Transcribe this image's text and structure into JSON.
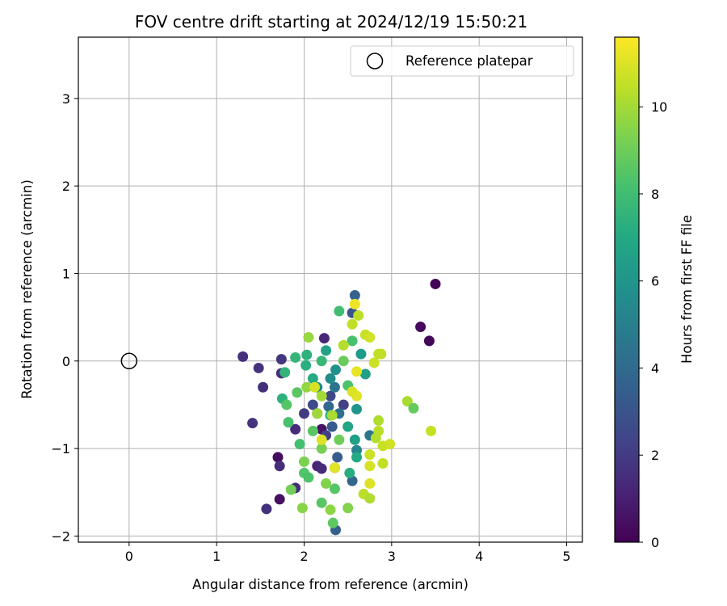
{
  "chart_data": {
    "type": "scatter",
    "title": "FOV centre drift starting at 2024/12/19 15:50:21",
    "xlabel": "Angular distance from reference (arcmin)",
    "ylabel": "Rotation from reference (arcmin)",
    "xlim": [
      -0.58,
      5.18
    ],
    "ylim": [
      -2.07,
      3.7
    ],
    "xticks": [
      0,
      1,
      2,
      3,
      4,
      5
    ],
    "yticks": [
      -2,
      -1,
      0,
      1,
      2,
      3
    ],
    "grid": true,
    "legend": {
      "placement": "top-right",
      "entries": [
        "Reference platepar"
      ]
    },
    "reference_point": {
      "x": 0,
      "y": 0,
      "marker": "open-circle"
    },
    "colorbar": {
      "label": "Hours from first FF file",
      "range": [
        0,
        11.6
      ],
      "ticks": [
        0,
        2,
        4,
        6,
        8,
        10
      ],
      "colormap": "viridis"
    },
    "series": [
      {
        "marker": "filled-circle",
        "points": [
          {
            "x": 3.5,
            "y": 0.88,
            "c": 0.1
          },
          {
            "x": 3.33,
            "y": 0.39,
            "c": 0.3
          },
          {
            "x": 3.43,
            "y": 0.23,
            "c": 0.2
          },
          {
            "x": 1.7,
            "y": -1.1,
            "c": 0.4
          },
          {
            "x": 1.72,
            "y": -1.58,
            "c": 0.5
          },
          {
            "x": 2.2,
            "y": -0.78,
            "c": 0.6
          },
          {
            "x": 1.3,
            "y": 0.05,
            "c": 1.6
          },
          {
            "x": 1.48,
            "y": -0.08,
            "c": 1.7
          },
          {
            "x": 1.53,
            "y": -0.3,
            "c": 1.6
          },
          {
            "x": 1.41,
            "y": -0.71,
            "c": 1.7
          },
          {
            "x": 1.57,
            "y": -1.69,
            "c": 1.6
          },
          {
            "x": 1.74,
            "y": -0.14,
            "c": 1.5
          },
          {
            "x": 1.72,
            "y": -1.2,
            "c": 1.5
          },
          {
            "x": 1.74,
            "y": 0.02,
            "c": 1.8
          },
          {
            "x": 1.9,
            "y": -0.78,
            "c": 1.5
          },
          {
            "x": 2.23,
            "y": 0.26,
            "c": 1.3
          },
          {
            "x": 2.15,
            "y": -1.2,
            "c": 1.2
          },
          {
            "x": 2.2,
            "y": -1.23,
            "c": 1.4
          },
          {
            "x": 1.9,
            "y": -1.45,
            "c": 1.5
          },
          {
            "x": 2.0,
            "y": -0.6,
            "c": 2.0
          },
          {
            "x": 2.15,
            "y": -0.6,
            "c": 2.5
          },
          {
            "x": 2.3,
            "y": -0.4,
            "c": 2.4
          },
          {
            "x": 2.45,
            "y": -0.5,
            "c": 2.2
          },
          {
            "x": 2.25,
            "y": -0.85,
            "c": 2.3
          },
          {
            "x": 2.1,
            "y": -0.5,
            "c": 2.6
          },
          {
            "x": 2.55,
            "y": 0.55,
            "c": 3.0
          },
          {
            "x": 2.58,
            "y": 0.75,
            "c": 3.6
          },
          {
            "x": 2.36,
            "y": -1.93,
            "c": 3.5
          },
          {
            "x": 2.35,
            "y": -1.22,
            "c": 3.2
          },
          {
            "x": 2.55,
            "y": -1.37,
            "c": 3.8
          },
          {
            "x": 2.38,
            "y": -1.1,
            "c": 3.4
          },
          {
            "x": 2.32,
            "y": -0.75,
            "c": 3.3
          },
          {
            "x": 2.28,
            "y": -0.52,
            "c": 3.9
          },
          {
            "x": 2.4,
            "y": -0.6,
            "c": 4.2
          },
          {
            "x": 2.35,
            "y": -0.3,
            "c": 4.4
          },
          {
            "x": 2.75,
            "y": -0.85,
            "c": 4.5
          },
          {
            "x": 2.6,
            "y": -1.02,
            "c": 5.2
          },
          {
            "x": 2.15,
            "y": -0.3,
            "c": 5.4
          },
          {
            "x": 2.3,
            "y": -0.2,
            "c": 5.6
          },
          {
            "x": 2.36,
            "y": -0.1,
            "c": 5.8
          },
          {
            "x": 2.6,
            "y": -0.55,
            "c": 6.0
          },
          {
            "x": 2.65,
            "y": 0.08,
            "c": 6.3
          },
          {
            "x": 2.7,
            "y": -0.15,
            "c": 6.5
          },
          {
            "x": 2.25,
            "y": 0.12,
            "c": 6.6
          },
          {
            "x": 2.5,
            "y": -0.75,
            "c": 6.8
          },
          {
            "x": 2.58,
            "y": -0.9,
            "c": 6.5
          },
          {
            "x": 2.6,
            "y": -1.1,
            "c": 7.0
          },
          {
            "x": 2.52,
            "y": -1.28,
            "c": 7.2
          },
          {
            "x": 2.3,
            "y": -0.62,
            "c": 7.0
          },
          {
            "x": 2.1,
            "y": -0.2,
            "c": 7.1
          },
          {
            "x": 2.02,
            "y": -0.05,
            "c": 7.3
          },
          {
            "x": 2.03,
            "y": 0.07,
            "c": 7.4
          },
          {
            "x": 1.9,
            "y": 0.04,
            "c": 7.6
          },
          {
            "x": 1.78,
            "y": -0.13,
            "c": 7.5
          },
          {
            "x": 1.75,
            "y": -0.43,
            "c": 7.4
          },
          {
            "x": 2.2,
            "y": 0.0,
            "c": 7.7
          },
          {
            "x": 2.4,
            "y": 0.57,
            "c": 8.0
          },
          {
            "x": 2.55,
            "y": 0.23,
            "c": 8.2
          },
          {
            "x": 2.5,
            "y": -0.28,
            "c": 8.3
          },
          {
            "x": 1.82,
            "y": -0.7,
            "c": 8.2
          },
          {
            "x": 1.95,
            "y": -0.95,
            "c": 8.1
          },
          {
            "x": 2.0,
            "y": -1.28,
            "c": 8.4
          },
          {
            "x": 2.05,
            "y": -1.33,
            "c": 8.3
          },
          {
            "x": 2.2,
            "y": -1.62,
            "c": 8.6
          },
          {
            "x": 2.33,
            "y": -1.85,
            "c": 8.7
          },
          {
            "x": 2.35,
            "y": -1.46,
            "c": 8.5
          },
          {
            "x": 1.92,
            "y": -0.36,
            "c": 8.6
          },
          {
            "x": 1.8,
            "y": -0.5,
            "c": 8.5
          },
          {
            "x": 2.1,
            "y": -0.8,
            "c": 8.6
          },
          {
            "x": 2.45,
            "y": 0.0,
            "c": 8.9
          },
          {
            "x": 2.4,
            "y": -0.9,
            "c": 9.0
          },
          {
            "x": 2.2,
            "y": -1.0,
            "c": 9.2
          },
          {
            "x": 1.85,
            "y": -1.47,
            "c": 9.1
          },
          {
            "x": 2.0,
            "y": -1.15,
            "c": 9.3
          },
          {
            "x": 2.25,
            "y": -1.4,
            "c": 9.4
          },
          {
            "x": 1.98,
            "y": -1.68,
            "c": 9.5
          },
          {
            "x": 2.3,
            "y": -1.7,
            "c": 9.6
          },
          {
            "x": 2.5,
            "y": -1.68,
            "c": 9.4
          },
          {
            "x": 2.03,
            "y": -0.3,
            "c": 9.7
          },
          {
            "x": 2.05,
            "y": 0.27,
            "c": 9.8
          },
          {
            "x": 2.15,
            "y": -0.6,
            "c": 9.9
          },
          {
            "x": 2.2,
            "y": -0.4,
            "c": 10.0
          },
          {
            "x": 2.32,
            "y": -0.62,
            "c": 10.1
          },
          {
            "x": 2.45,
            "y": 0.18,
            "c": 10.3
          },
          {
            "x": 2.55,
            "y": 0.42,
            "c": 10.5
          },
          {
            "x": 2.62,
            "y": 0.52,
            "c": 10.4
          },
          {
            "x": 2.7,
            "y": 0.3,
            "c": 10.6
          },
          {
            "x": 2.75,
            "y": 0.27,
            "c": 10.8
          },
          {
            "x": 2.8,
            "y": -0.02,
            "c": 10.7
          },
          {
            "x": 2.85,
            "y": 0.08,
            "c": 10.6
          },
          {
            "x": 2.88,
            "y": 0.08,
            "c": 10.5
          },
          {
            "x": 2.85,
            "y": -0.68,
            "c": 10.2
          },
          {
            "x": 2.85,
            "y": -0.8,
            "c": 10.4
          },
          {
            "x": 2.82,
            "y": -0.88,
            "c": 10.3
          },
          {
            "x": 2.9,
            "y": -0.97,
            "c": 10.6
          },
          {
            "x": 2.98,
            "y": -0.95,
            "c": 10.8
          },
          {
            "x": 2.75,
            "y": -1.07,
            "c": 10.7
          },
          {
            "x": 2.9,
            "y": -1.17,
            "c": 10.5
          },
          {
            "x": 2.75,
            "y": -1.2,
            "c": 10.9
          },
          {
            "x": 2.75,
            "y": -1.4,
            "c": 11.0
          },
          {
            "x": 2.68,
            "y": -1.52,
            "c": 10.4
          },
          {
            "x": 2.75,
            "y": -1.57,
            "c": 10.2
          },
          {
            "x": 3.18,
            "y": -0.46,
            "c": 10.1
          },
          {
            "x": 3.25,
            "y": -0.54,
            "c": 8.8
          },
          {
            "x": 3.45,
            "y": -0.8,
            "c": 10.6
          },
          {
            "x": 2.6,
            "y": -0.4,
            "c": 11.1
          },
          {
            "x": 2.6,
            "y": -0.12,
            "c": 11.2
          },
          {
            "x": 2.58,
            "y": 0.65,
            "c": 11.3
          },
          {
            "x": 2.55,
            "y": -0.35,
            "c": 11.0
          },
          {
            "x": 2.35,
            "y": -1.22,
            "c": 11.1
          },
          {
            "x": 2.2,
            "y": -0.9,
            "c": 11.0
          },
          {
            "x": 2.12,
            "y": -0.3,
            "c": 10.9
          }
        ]
      }
    ]
  }
}
